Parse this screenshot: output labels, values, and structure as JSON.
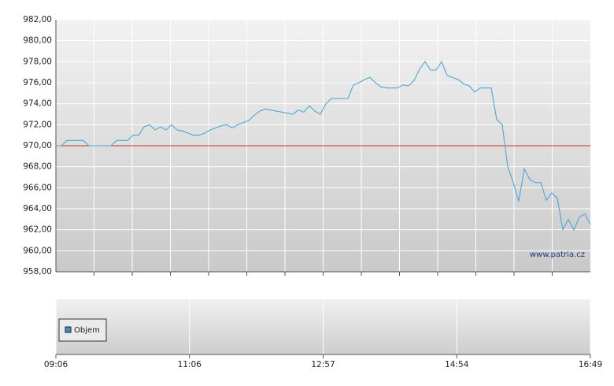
{
  "chart_data": {
    "type": "line",
    "ylim": [
      958,
      982
    ],
    "yticks": [
      {
        "value": 958,
        "label": "958,00"
      },
      {
        "value": 960,
        "label": "960,00"
      },
      {
        "value": 962,
        "label": "962,00"
      },
      {
        "value": 964,
        "label": "964,00"
      },
      {
        "value": 966,
        "label": "966,00"
      },
      {
        "value": 968,
        "label": "968,00"
      },
      {
        "value": 970,
        "label": "970,00"
      },
      {
        "value": 972,
        "label": "972,00"
      },
      {
        "value": 974,
        "label": "974,00"
      },
      {
        "value": 976,
        "label": "976,00"
      },
      {
        "value": 978,
        "label": "978,00"
      },
      {
        "value": 980,
        "label": "980,00"
      },
      {
        "value": 982,
        "label": "982,00"
      }
    ],
    "x_labels": [
      "09:06",
      "11:06",
      "12:57",
      "14:54",
      "16:49"
    ],
    "grid": true,
    "series": [
      {
        "color": "#4aa8d8",
        "values": [
          970,
          970,
          970.5,
          970.5,
          970.5,
          970.5,
          970,
          970,
          970,
          970,
          970,
          970.5,
          970.5,
          970.5,
          971,
          971,
          971.8,
          972,
          971.5,
          971.8,
          971.5,
          972,
          971.5,
          971.4,
          971.2,
          971,
          971,
          971.2,
          971.5,
          971.7,
          971.9,
          972,
          971.7,
          972,
          972.2,
          972.4,
          972.9,
          973.3,
          973.5,
          973.4,
          973.3,
          973.2,
          973.1,
          973,
          973.4,
          973.2,
          973.8,
          973.3,
          973,
          974,
          974.5,
          974.5,
          974.5,
          974.5,
          975.8,
          976,
          976.3,
          976.5,
          976,
          975.6,
          975.5,
          975.5,
          975.5,
          975.8,
          975.7,
          976.2,
          977.3,
          978,
          977.2,
          977.2,
          978,
          976.7,
          976.5,
          976.3,
          975.9,
          975.7,
          975.1,
          975.5,
          975.5,
          975.5,
          972.5,
          972,
          968,
          966.5,
          964.7,
          967.8,
          966.8,
          966.5,
          966.5,
          964.8,
          965.5,
          965,
          962,
          963,
          962,
          963.2,
          963.5,
          962.5
        ]
      }
    ],
    "reference_line": {
      "value": 970,
      "color": "#cc3333"
    },
    "watermark": "www.patria.cz",
    "volume_legend": {
      "label": "Objem",
      "color": "#3a8fd0"
    }
  }
}
